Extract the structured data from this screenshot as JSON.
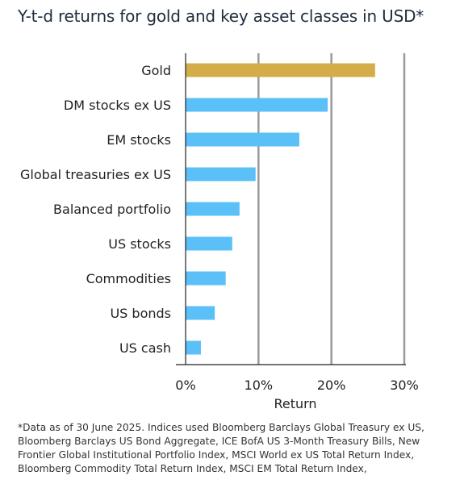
{
  "title": "Y-t-d returns for gold and key asset classes in USD*",
  "footnote": "*Data as of 30 June 2025. Indices used Bloomberg Barclays Global Treasury ex US, Bloomberg Barclays US Bond Aggregate, ICE BofA US 3-Month Treasury Bills, New Frontier Global Institutional Portfolio Index, MSCI World ex US Total Return Index, Bloomberg Commodity Total Return Index, MSCI EM Total Return Index,",
  "colors": {
    "gold": "#d4ad4b",
    "other": "#5bc0f8",
    "grid": "#9a9a9a",
    "axis": "#222222"
  },
  "chart_data": {
    "type": "bar",
    "orientation": "horizontal",
    "categories": [
      "Gold",
      "DM stocks ex US",
      "EM stocks",
      "Global treasuries ex US",
      "Balanced portfolio",
      "US stocks",
      "Commodities",
      "US bonds",
      "US cash"
    ],
    "values": [
      26.0,
      19.5,
      15.6,
      9.6,
      7.4,
      6.4,
      5.5,
      4.0,
      2.1
    ],
    "xlabel": "Return",
    "ylabel": "",
    "xlim": [
      0,
      30
    ],
    "ticks": [
      0,
      10,
      20,
      30
    ],
    "tick_labels": [
      "0%",
      "10%",
      "20%",
      "30%"
    ],
    "grid": "vertical"
  }
}
